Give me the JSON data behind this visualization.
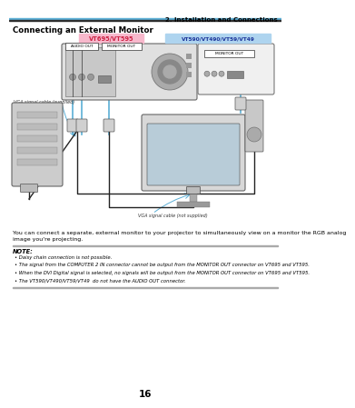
{
  "page_num": "16",
  "chapter_header": "2. Installation and Connections",
  "section_title": "Connecting an External Monitor",
  "header_line_color_blue": "#5bafd6",
  "header_line_color_dark": "#2e2e2e",
  "label_vt695": "VT695/VT595",
  "label_vt590": "VT590/VT490/VT59/VT49",
  "label_vt695_bg": "#f7b8cc",
  "label_vt590_bg": "#aed4ef",
  "label_vt695_fg": "#cc2244",
  "label_vt590_fg": "#1a3399",
  "audio_out_label": "AUDIO OUT",
  "monitor_out_label": "MONITOR OUT",
  "monitor_out2_label": "MONITOR OUT",
  "vga_supplied_label": "VGA signal cable (supplied)",
  "vga_notsupplied_label": "VGA signal cable (not supplied)",
  "body_text_line1": "You can connect a separate, external monitor to your projector to simultaneously view on a monitor the RGB analog",
  "body_text_line2": "image you're projecting.",
  "note_label": "NOTE:",
  "note_items": [
    "Daisy chain connection is not possible.",
    "The signal from the COMPUTER 2 IN connector cannot be output from the MONITOR OUT connector on VT695 and VT595.",
    "When the DVI Digital signal is selected, no signals will be output from the MONITOR OUT connector on VT695 and VT595.",
    "The VT590/VT490/VT59/VT49  do not have the AUDIO OUT connector."
  ],
  "bg_color": "#ffffff",
  "text_color": "#000000",
  "line_color": "#5bafd6",
  "proj_fill": "#e0e0e0",
  "proj_edge": "#666666",
  "comp_fill": "#cccccc",
  "mon_fill": "#d8d8d8",
  "wire_color": "#222222",
  "conn_fill": "#bbbbbb"
}
